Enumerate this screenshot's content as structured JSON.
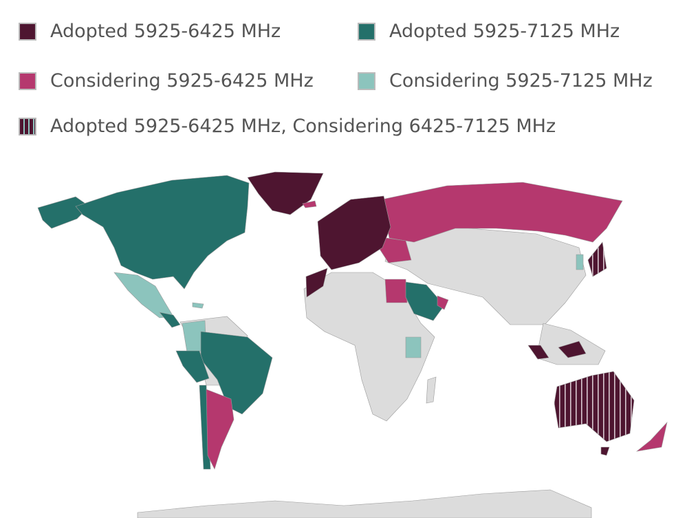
{
  "legend": {
    "items": [
      {
        "label": "Adopted 5925-6425 MHz",
        "color": "#4e1530",
        "pattern": "solid"
      },
      {
        "label": "Adopted 5925-7125 MHz",
        "color": "#24706a",
        "pattern": "solid"
      },
      {
        "label": "Considering 5925-6425 MHz",
        "color": "#b5386e",
        "pattern": "solid"
      },
      {
        "label": "Considering 5925-7125 MHz",
        "color": "#8cc4bd",
        "pattern": "solid"
      },
      {
        "label": "Adopted 5925-6425 MHz, Considering 6425-7125 MHz",
        "color": "#4e1530",
        "stripe_color": "#8cc4bd",
        "pattern": "vertical-stripes"
      }
    ]
  },
  "map": {
    "no_data_color": "#dcdcdc"
  }
}
